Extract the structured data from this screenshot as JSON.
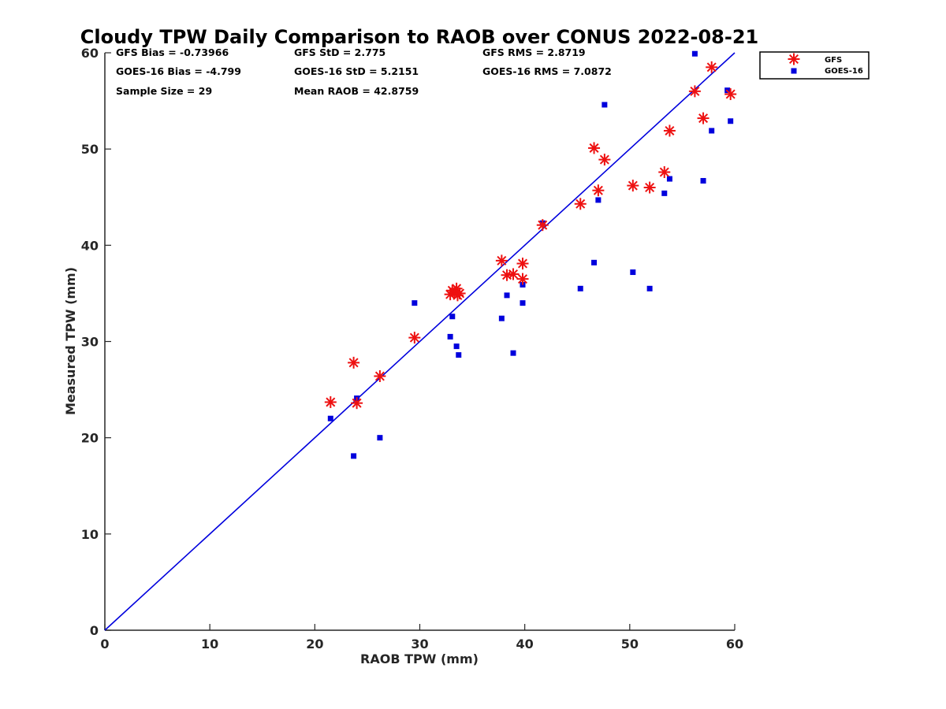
{
  "chart_data": {
    "type": "scatter",
    "title": "Cloudy TPW Daily Comparison to RAOB over CONUS 2022-08-21",
    "xlabel": "RAOB TPW (mm)",
    "ylabel": "Measured TPW (mm)",
    "xlim": [
      0,
      60
    ],
    "ylim": [
      0,
      60
    ],
    "xticks": [
      "0",
      "10",
      "20",
      "30",
      "40",
      "50",
      "60"
    ],
    "yticks": [
      "0",
      "10",
      "20",
      "30",
      "40",
      "50",
      "60"
    ],
    "grid": false,
    "legend_position": "top-right outside",
    "stats": [
      "GFS Bias = -0.73966",
      "GFS StD = 2.775",
      "GFS RMS = 2.8719",
      "GOES-16 Bias = -4.799",
      "GOES-16 StD = 5.2151",
      "GOES-16 RMS = 7.0872",
      "Sample Size = 29",
      "Mean RAOB = 42.8759"
    ],
    "reference_line": {
      "x": [
        0,
        60
      ],
      "y": [
        0,
        60
      ],
      "color": "#0000dd"
    },
    "series": [
      {
        "name": "GFS",
        "marker": "asterisk",
        "color": "#ee1111",
        "x": [
          21.5,
          23.7,
          24.0,
          26.2,
          29.5,
          32.9,
          33.1,
          33.3,
          33.5,
          33.6,
          33.8,
          37.8,
          38.3,
          38.9,
          39.8,
          39.8,
          41.7,
          45.3,
          46.6,
          47.0,
          47.6,
          50.3,
          51.9,
          53.3,
          53.8,
          56.2,
          57.0,
          57.8,
          59.6
        ],
        "y": [
          23.7,
          27.8,
          23.6,
          26.4,
          30.4,
          34.9,
          35.3,
          35.1,
          35.5,
          34.8,
          35.0,
          38.4,
          36.9,
          37.0,
          38.1,
          36.5,
          42.1,
          44.3,
          50.1,
          45.7,
          48.9,
          46.2,
          46.0,
          47.6,
          51.9,
          56.0,
          53.2,
          58.5,
          55.7
        ]
      },
      {
        "name": "GOES-16",
        "marker": "square",
        "color": "#0000dd",
        "x": [
          21.5,
          23.7,
          24.0,
          26.2,
          29.5,
          32.9,
          33.1,
          33.5,
          33.7,
          37.8,
          38.3,
          38.9,
          39.8,
          39.8,
          41.7,
          45.3,
          46.6,
          47.0,
          47.6,
          50.3,
          51.9,
          53.3,
          53.8,
          56.2,
          57.0,
          57.8,
          59.3,
          59.6
        ],
        "y": [
          22.0,
          18.1,
          24.1,
          20.0,
          34.0,
          30.5,
          32.6,
          29.5,
          28.6,
          32.4,
          34.8,
          28.8,
          34.0,
          35.9,
          42.3,
          35.5,
          38.2,
          44.7,
          54.6,
          37.2,
          35.5,
          45.4,
          46.9,
          59.9,
          46.7,
          51.9,
          56.1,
          52.9
        ]
      }
    ]
  }
}
